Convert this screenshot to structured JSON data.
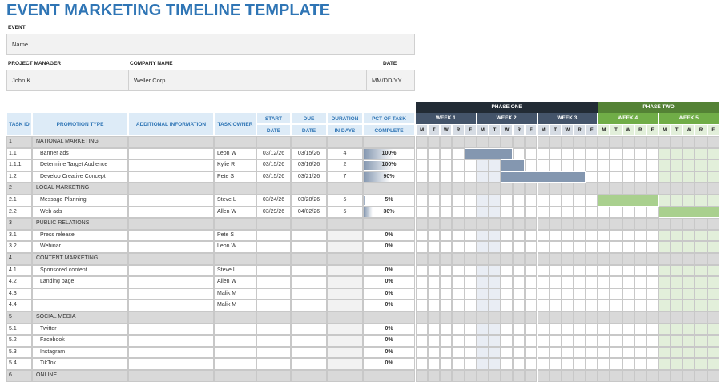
{
  "title": "EVENT MARKETING TIMELINE TEMPLATE",
  "event": {
    "label": "EVENT",
    "value": "Name"
  },
  "project_manager": {
    "label": "PROJECT MANAGER",
    "value": "John K."
  },
  "company": {
    "label": "COMPANY NAME",
    "value": "Weller Corp."
  },
  "date": {
    "label": "DATE",
    "value": "MM/DD/YY"
  },
  "table": {
    "headers": [
      [
        "TASK ID"
      ],
      [
        "PROMOTION TYPE"
      ],
      [
        "ADDITIONAL INFORMATION"
      ],
      [
        "TASK OWNER"
      ],
      [
        "START",
        "DATE"
      ],
      [
        "DUE",
        "DATE"
      ],
      [
        "DURATION",
        "IN DAYS"
      ],
      [
        "PCT OF TASK",
        "COMPLETE"
      ]
    ],
    "rows": [
      {
        "id": "1",
        "section": "NATIONAL MARKETING"
      },
      {
        "id": "1.1",
        "type": "Banner ads",
        "owner": "Leon W",
        "start": "03/12/26",
        "due": "03/15/26",
        "duration": 4,
        "pct": 100,
        "pct_label": "100%"
      },
      {
        "id": "1.1.1",
        "type": "Determine Target Audience",
        "owner": "Kylie R",
        "start": "03/15/26",
        "due": "03/16/26",
        "duration": 2,
        "pct": 100,
        "pct_label": "100%"
      },
      {
        "id": "1.2",
        "type": "Develop Creative Concept",
        "owner": "Pete S",
        "start": "03/15/26",
        "due": "03/21/26",
        "duration": 7,
        "pct": 90,
        "pct_label": "90%"
      },
      {
        "id": "2",
        "section": "LOCAL MARKETING"
      },
      {
        "id": "2.1",
        "type": "Message Planning",
        "owner": "Steve L",
        "start": "03/24/26",
        "due": "03/28/26",
        "duration": 5,
        "pct": 5,
        "pct_label": "5%"
      },
      {
        "id": "2.2",
        "type": "Web ads",
        "owner": "Allen W",
        "start": "03/29/26",
        "due": "04/02/26",
        "duration": 5,
        "pct": 30,
        "pct_label": "30%"
      },
      {
        "id": "3",
        "section": "PUBLIC RELATIONS"
      },
      {
        "id": "3.1",
        "type": "Press release",
        "owner": "Pete S",
        "pct": 0,
        "pct_label": "0%"
      },
      {
        "id": "3.2",
        "type": "Webinar",
        "owner": "Leon W",
        "pct": 0,
        "pct_label": "0%"
      },
      {
        "id": "4",
        "section": "CONTENT MARKETING"
      },
      {
        "id": "4.1",
        "type": "Sponsored content",
        "owner": "Steve L",
        "pct": 0,
        "pct_label": "0%"
      },
      {
        "id": "4.2",
        "type": "Landing page",
        "owner": "Allen W",
        "pct": 0,
        "pct_label": "0%"
      },
      {
        "id": "4.3",
        "owner": "Malik M",
        "pct": 0,
        "pct_label": "0%"
      },
      {
        "id": "4.4",
        "owner": "Malik M",
        "pct": 0,
        "pct_label": "0%"
      },
      {
        "id": "5",
        "section": "SOCIAL MEDIA"
      },
      {
        "id": "5.1",
        "type": "Twitter",
        "pct": 0,
        "pct_label": "0%"
      },
      {
        "id": "5.2",
        "type": "Facebook",
        "pct": 0,
        "pct_label": "0%"
      },
      {
        "id": "5.3",
        "type": "Instagram",
        "pct": 0,
        "pct_label": "0%"
      },
      {
        "id": "5.4",
        "type": "TikTok",
        "pct": 0,
        "pct_label": "0%"
      },
      {
        "id": "6",
        "section": "ONLINE"
      }
    ]
  },
  "gantt": {
    "phases": [
      "PHASE ONE",
      "PHASE TWO"
    ],
    "weeks": [
      "WEEK 1",
      "WEEK 2",
      "WEEK 3",
      "WEEK 4",
      "WEEK 5"
    ],
    "days": [
      "M",
      "T",
      "W",
      "R",
      "F"
    ]
  }
}
